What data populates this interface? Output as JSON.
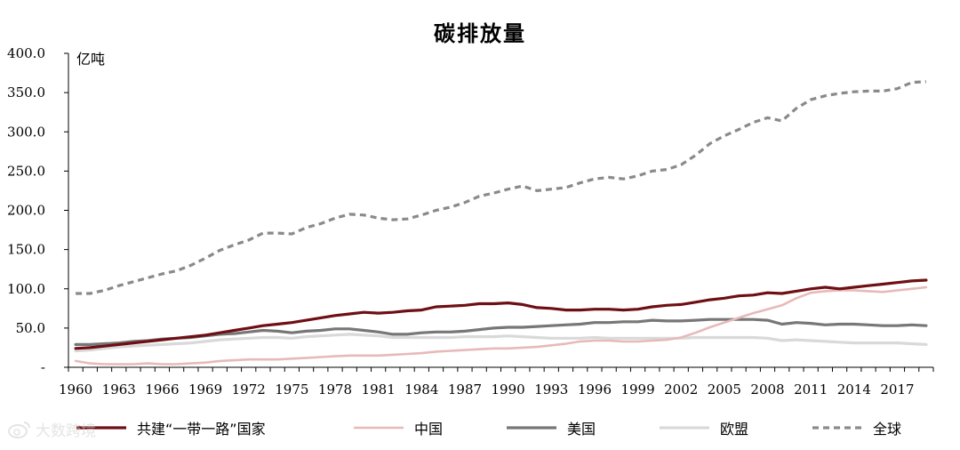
{
  "chart_data": {
    "type": "line",
    "title": "碳排放量",
    "unit_label": "亿吨",
    "ylim": [
      0,
      400
    ],
    "yticks": [
      "-",
      "50.0",
      "100.0",
      "150.0",
      "200.0",
      "250.0",
      "300.0",
      "350.0",
      "400.0"
    ],
    "ytick_values": [
      0,
      50,
      100,
      150,
      200,
      250,
      300,
      350,
      400
    ],
    "x_start": 1960,
    "x_end": 2019,
    "xticks": [
      1960,
      1963,
      1966,
      1969,
      1972,
      1975,
      1978,
      1981,
      1984,
      1987,
      1990,
      1993,
      1996,
      1999,
      2002,
      2005,
      2008,
      2011,
      2014,
      2017
    ],
    "legend_position": "bottom",
    "grid": false,
    "series": [
      {
        "name": "共建“一带一路”国家",
        "color": "#6e0f14",
        "style": "solid",
        "width": 3.2,
        "values": [
          24,
          25,
          27,
          29,
          31,
          33,
          35,
          37,
          39,
          41,
          44,
          47,
          50,
          53,
          55,
          57,
          60,
          63,
          66,
          68,
          70,
          69,
          70,
          72,
          73,
          77,
          78,
          79,
          81,
          81,
          82,
          80,
          76,
          75,
          73,
          73,
          74,
          74,
          73,
          74,
          77,
          79,
          80,
          83,
          86,
          88,
          91,
          92,
          95,
          94,
          97,
          100,
          102,
          100,
          102,
          104,
          106,
          108,
          110,
          111
        ]
      },
      {
        "name": "中国",
        "color": "#e8b9b9",
        "style": "solid",
        "width": 2.6,
        "values": [
          8,
          5,
          4,
          4,
          4,
          5,
          4,
          4,
          5,
          6,
          8,
          9,
          10,
          10,
          10,
          11,
          12,
          13,
          14,
          15,
          15,
          15,
          16,
          17,
          18,
          20,
          21,
          22,
          23,
          24,
          24,
          25,
          26,
          28,
          30,
          33,
          34,
          34,
          33,
          33,
          34,
          35,
          38,
          44,
          51,
          57,
          63,
          69,
          74,
          79,
          88,
          95,
          97,
          98,
          98,
          97,
          96,
          98,
          100,
          102
        ]
      },
      {
        "name": "美国",
        "color": "#777777",
        "style": "solid",
        "width": 3.2,
        "values": [
          29,
          29,
          30,
          31,
          33,
          34,
          36,
          37,
          38,
          40,
          42,
          43,
          45,
          47,
          46,
          44,
          46,
          47,
          49,
          49,
          47,
          45,
          42,
          42,
          44,
          45,
          45,
          46,
          48,
          50,
          51,
          51,
          52,
          53,
          54,
          55,
          57,
          57,
          58,
          58,
          60,
          59,
          59,
          60,
          61,
          61,
          61,
          61,
          60,
          55,
          57,
          56,
          54,
          55,
          55,
          54,
          53,
          53,
          54,
          53
        ]
      },
      {
        "name": "欧盟",
        "color": "#d9d9d9",
        "style": "solid",
        "width": 3.2,
        "values": [
          21,
          22,
          24,
          26,
          27,
          28,
          29,
          30,
          31,
          33,
          35,
          36,
          37,
          38,
          38,
          37,
          39,
          40,
          41,
          42,
          41,
          40,
          38,
          38,
          38,
          38,
          38,
          39,
          39,
          39,
          40,
          39,
          38,
          37,
          37,
          37,
          38,
          37,
          37,
          37,
          37,
          37,
          37,
          38,
          38,
          38,
          38,
          38,
          37,
          34,
          35,
          34,
          33,
          32,
          31,
          31,
          31,
          31,
          30,
          29
        ]
      },
      {
        "name": "全球",
        "color": "#8a8a8a",
        "style": "dashed",
        "width": 3.2,
        "values": [
          94,
          94,
          98,
          104,
          109,
          114,
          119,
          123,
          130,
          139,
          149,
          156,
          162,
          171,
          171,
          170,
          178,
          183,
          190,
          195,
          194,
          190,
          188,
          189,
          194,
          200,
          204,
          210,
          218,
          222,
          227,
          231,
          225,
          227,
          229,
          235,
          240,
          242,
          240,
          244,
          250,
          252,
          258,
          270,
          285,
          295,
          303,
          312,
          318,
          314,
          330,
          341,
          346,
          349,
          351,
          352,
          352,
          355,
          363,
          364
        ]
      }
    ]
  },
  "watermark": {
    "icon": "weibo-logo-icon",
    "text": "大数跨境"
  }
}
